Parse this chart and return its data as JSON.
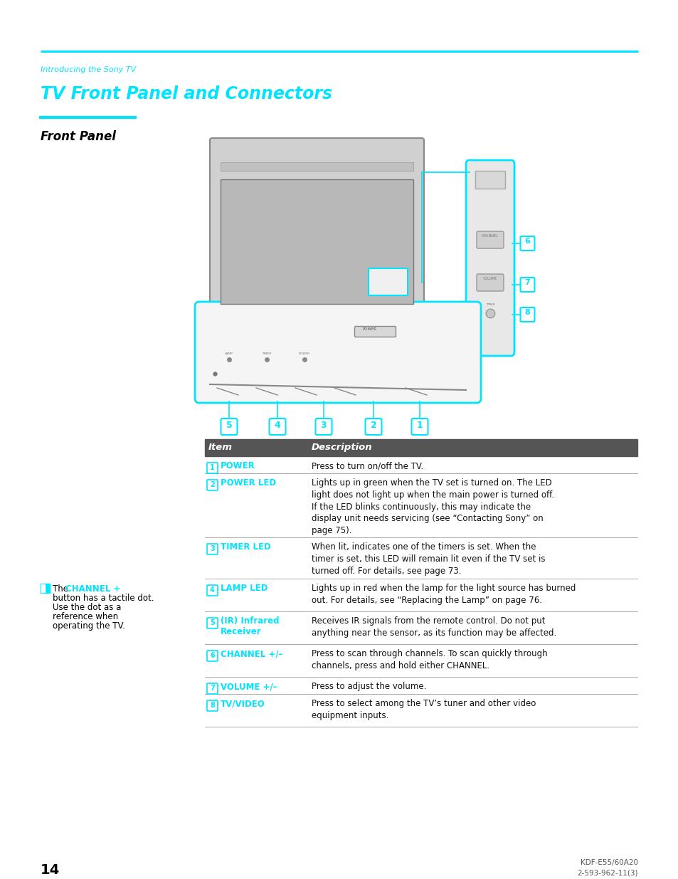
{
  "page_bg": "#ffffff",
  "top_line_color": "#00e5ff",
  "section_label": "Introducing the Sony TV",
  "section_label_color": "#00e5ff",
  "title": "TV Front Panel and Connectors",
  "title_color": "#00e5ff",
  "subsection_underline_color": "#00e5ff",
  "subsection_label": "Front Panel",
  "subsection_label_color": "#000000",
  "table_header_bg": "#555555",
  "table_header_text_color": "#ffffff",
  "table_item_color": "#00e5ff",
  "table_border_color": "#aaaaaa",
  "table_desc_color": "#000000",
  "table_rows": [
    {
      "item_num": "1",
      "item_name": "POWER",
      "description": "Press to turn on/off the TV."
    },
    {
      "item_num": "2",
      "item_name": "POWER LED",
      "description": "Lights up in green when the TV set is turned on. The LED\nlight does not light up when the main power is turned off.\nIf the LED blinks continuously, this may indicate the\ndisplay unit needs servicing (see “Contacting Sony” on\npage 75)."
    },
    {
      "item_num": "3",
      "item_name": "TIMER LED",
      "description": "When lit, indicates one of the timers is set. When the\ntimer is set, this LED will remain lit even if the TV set is\nturned off. For details, see page 73."
    },
    {
      "item_num": "4",
      "item_name": "LAMP LED",
      "description": "Lights up in red when the lamp for the light source has burned\nout. For details, see “Replacing the Lamp” on page 76."
    },
    {
      "item_num": "5",
      "item_name": "(IR) Infrared\nReceiver",
      "description": "Receives IR signals from the remote control. Do not put\nanything near the sensor, as its function may be affected."
    },
    {
      "item_num": "6",
      "item_name": "CHANNEL +/–",
      "description": "Press to scan through channels. To scan quickly through\nchannels, press and hold either CHANNEL."
    },
    {
      "item_num": "7",
      "item_name": "VOLUME +/–",
      "description": "Press to adjust the volume."
    },
    {
      "item_num": "8",
      "item_name": "TV/VIDEO",
      "description": "Press to select among the TV’s tuner and other video\nequipment inputs."
    }
  ],
  "side_note_icon_color": "#00e5ff",
  "side_note_channel_color": "#00e5ff",
  "page_number": "14",
  "footer_text": "KDF-E55/60A20\n2-593-962-11(3)"
}
